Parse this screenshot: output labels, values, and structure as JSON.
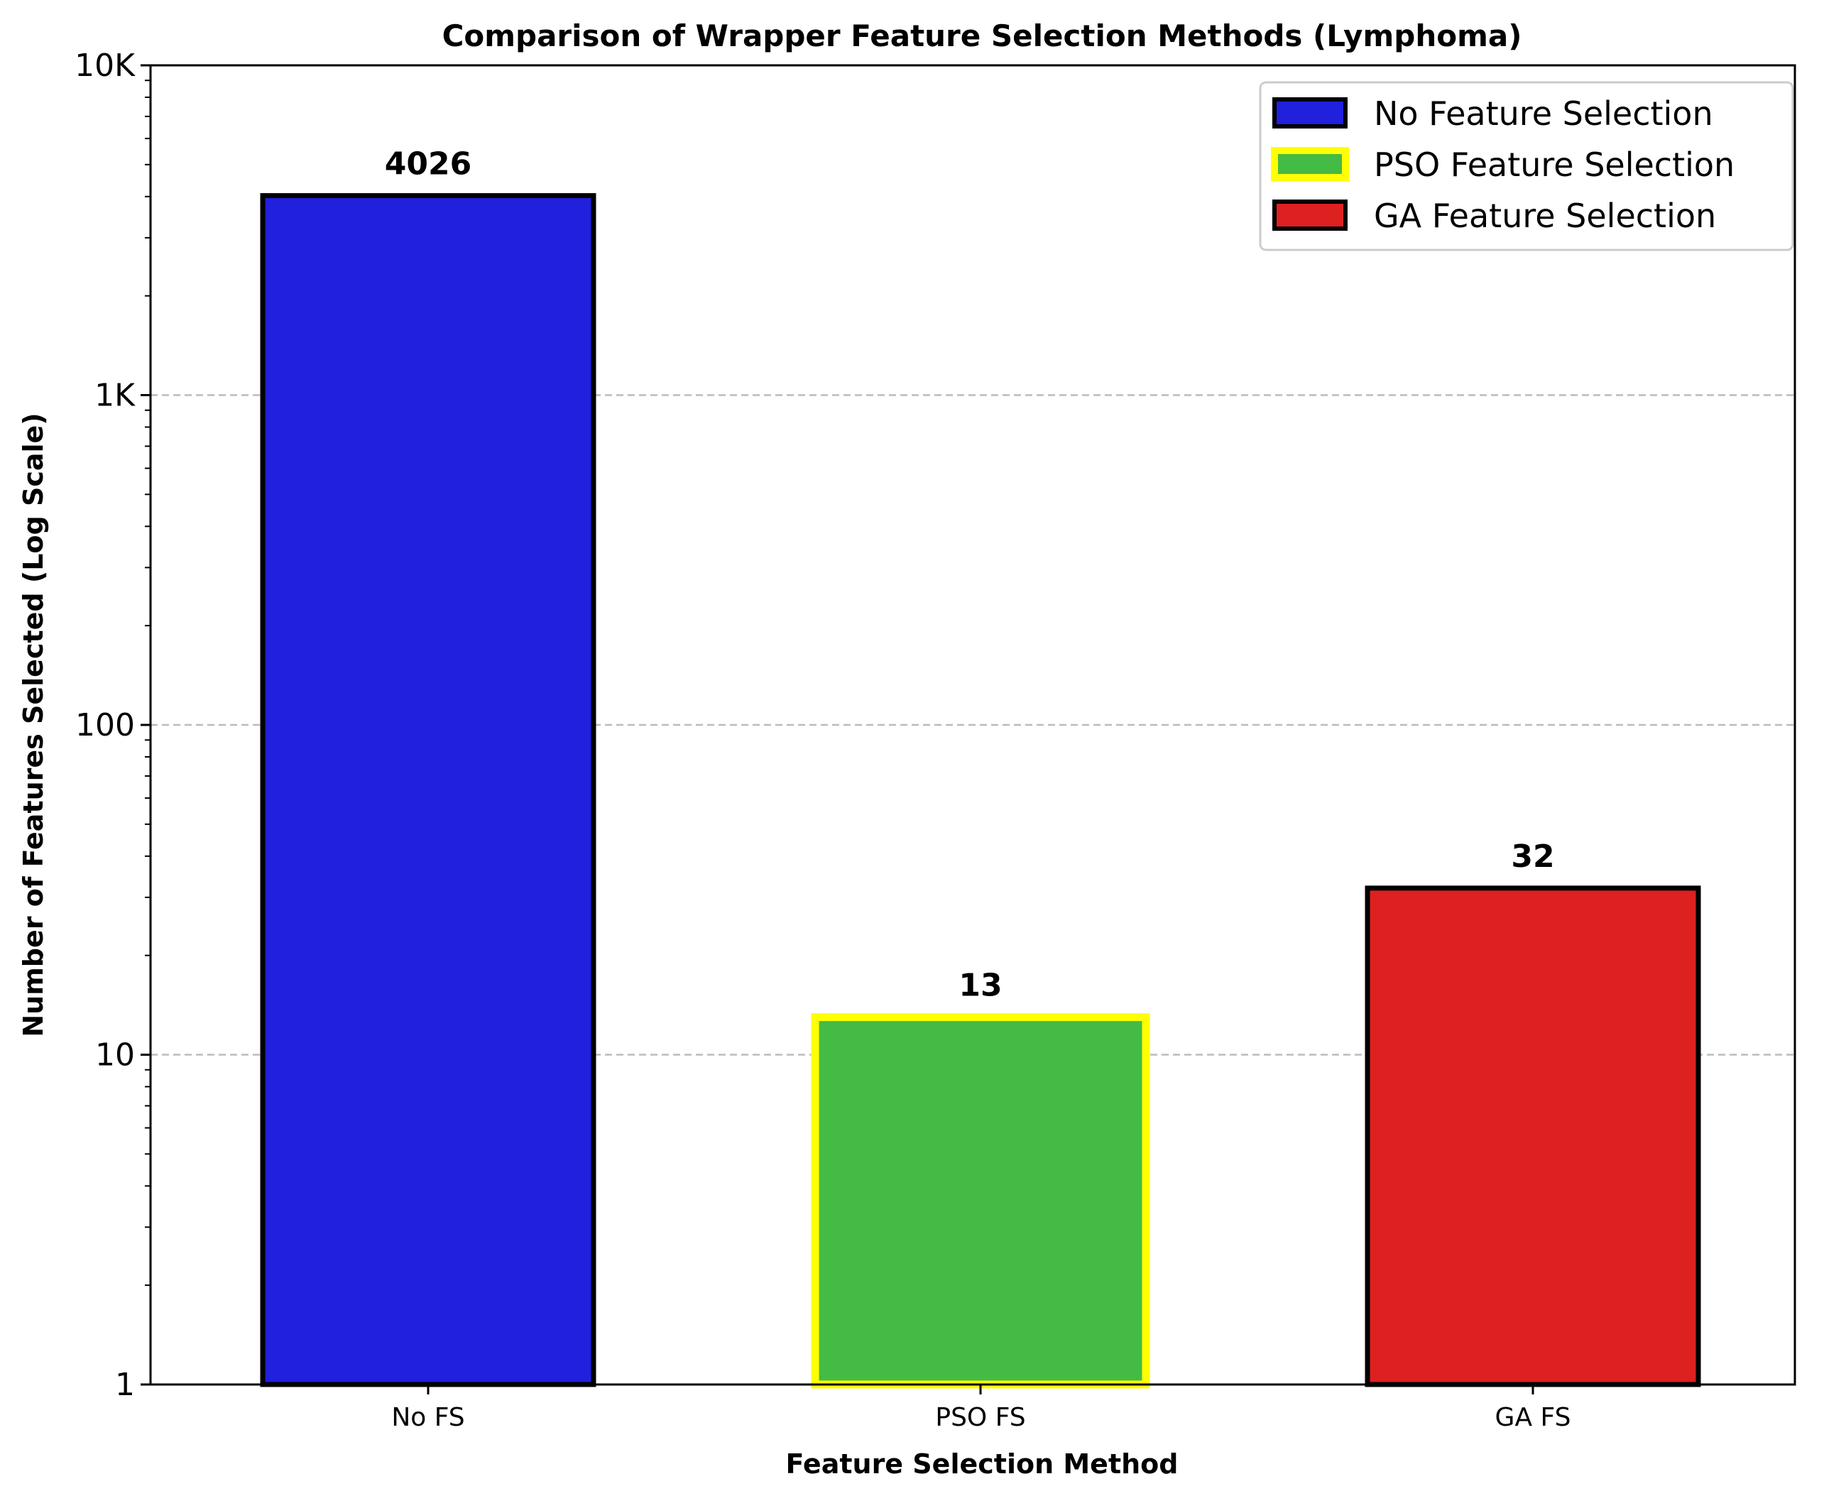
{
  "chart_data": {
    "type": "bar",
    "title": "Comparison of Wrapper Feature Selection Methods (Lymphoma)",
    "xlabel": "Feature Selection Method",
    "ylabel": "Number of Features Selected (Log Scale)",
    "yscale": "log",
    "ylim": [
      1,
      10000
    ],
    "yticks": [
      1,
      10,
      100,
      1000,
      10000
    ],
    "ytick_labels": [
      "1",
      "10",
      "100",
      "1K",
      "10K"
    ],
    "grid": "y-major-dashed",
    "legend_position": "top-right",
    "categories": [
      "No FS",
      "PSO FS",
      "GA FS"
    ],
    "values": [
      4026,
      13,
      32
    ],
    "value_labels": [
      "4026",
      "13",
      "32"
    ],
    "bar_colors": [
      "#2020dd",
      "#44bb44",
      "#dd2020"
    ],
    "edge_colors": [
      "#000000",
      "#ffff00",
      "#000000"
    ],
    "legend": [
      "No Feature Selection",
      "PSO Feature Selection",
      "GA Feature Selection"
    ]
  }
}
